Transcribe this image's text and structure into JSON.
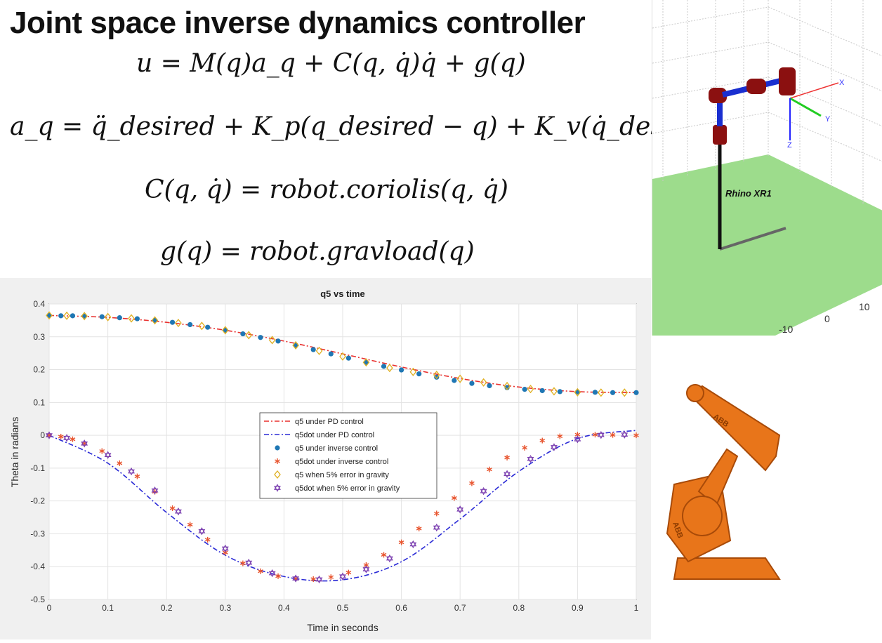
{
  "slide": {
    "title": "Joint space inverse dynamics controller",
    "equations": {
      "control_law": "u = M(q)a_q + C(q, q̇)q̇ + g(q)",
      "acceleration": "a_q = q̈_desired + K_p(q_desired − q) + K_v(q̇_desired − q̇)",
      "coriolis": "C(q, q̇) = robot.coriolis(q, q̇)",
      "gravity": "g(q) = robot.gravload(q)"
    }
  },
  "simulation": {
    "robot_label": "Rhino XR1",
    "axis_labels": {
      "x": "X",
      "y": "Y",
      "z": "Z"
    },
    "tick_labels": [
      "-10",
      "0",
      "10"
    ]
  },
  "photo": {
    "brand_text": "ABB",
    "description_name": "abb-industrial-robot"
  },
  "chart_data": {
    "type": "line",
    "title": "q5 vs time",
    "xlabel": "Time in seconds",
    "ylabel": "Theta in radians",
    "xlim": [
      0,
      1
    ],
    "ylim": [
      -0.5,
      0.4
    ],
    "xticks": [
      "0",
      "0.1",
      "0.2",
      "0.3",
      "0.4",
      "0.5",
      "0.6",
      "0.7",
      "0.8",
      "0.9",
      "1"
    ],
    "yticks": [
      "0.4",
      "0.3",
      "0.2",
      "0.1",
      "0",
      "-0.1",
      "-0.2",
      "-0.3",
      "-0.4",
      "-0.5"
    ],
    "grid": true,
    "legend_position": "center",
    "series": [
      {
        "name": "q5 under PD control",
        "style": "dashdot",
        "color": "#e8312f",
        "x": [
          0,
          0.1,
          0.2,
          0.3,
          0.4,
          0.5,
          0.6,
          0.7,
          0.8,
          0.9,
          1.0
        ],
        "values": [
          0.365,
          0.359,
          0.344,
          0.32,
          0.287,
          0.248,
          0.208,
          0.173,
          0.147,
          0.133,
          0.13
        ]
      },
      {
        "name": "q5dot under PD control",
        "style": "dashdot",
        "color": "#2b2bd6",
        "x": [
          0,
          0.1,
          0.2,
          0.3,
          0.4,
          0.5,
          0.6,
          0.7,
          0.8,
          0.9,
          1.0
        ],
        "values": [
          0.0,
          -0.085,
          -0.235,
          -0.365,
          -0.43,
          -0.44,
          -0.385,
          -0.255,
          -0.11,
          -0.01,
          0.015
        ]
      },
      {
        "name": "q5 under inverse control",
        "style": "dot",
        "color": "#1f77b4",
        "x": [
          0,
          0.02,
          0.04,
          0.06,
          0.09,
          0.12,
          0.15,
          0.18,
          0.21,
          0.24,
          0.27,
          0.3,
          0.33,
          0.36,
          0.39,
          0.42,
          0.45,
          0.48,
          0.51,
          0.54,
          0.57,
          0.6,
          0.63,
          0.66,
          0.69,
          0.72,
          0.75,
          0.78,
          0.81,
          0.84,
          0.87,
          0.9,
          0.93,
          0.96,
          1.0
        ],
        "values": [
          0.365,
          0.364,
          0.364,
          0.363,
          0.361,
          0.358,
          0.355,
          0.35,
          0.344,
          0.337,
          0.329,
          0.32,
          0.309,
          0.298,
          0.287,
          0.274,
          0.261,
          0.248,
          0.235,
          0.222,
          0.21,
          0.199,
          0.187,
          0.177,
          0.167,
          0.158,
          0.151,
          0.145,
          0.14,
          0.136,
          0.133,
          0.132,
          0.131,
          0.13,
          0.13
        ]
      },
      {
        "name": "q5dot under inverse control",
        "style": "asterisk",
        "color": "#e8552f",
        "x": [
          0,
          0.02,
          0.04,
          0.06,
          0.09,
          0.12,
          0.15,
          0.18,
          0.21,
          0.24,
          0.27,
          0.3,
          0.33,
          0.36,
          0.39,
          0.42,
          0.45,
          0.48,
          0.51,
          0.54,
          0.57,
          0.6,
          0.63,
          0.66,
          0.69,
          0.72,
          0.75,
          0.78,
          0.81,
          0.84,
          0.87,
          0.9,
          0.93,
          0.96,
          1.0
        ],
        "values": [
          0.0,
          -0.004,
          -0.012,
          -0.025,
          -0.048,
          -0.085,
          -0.125,
          -0.172,
          -0.222,
          -0.272,
          -0.318,
          -0.357,
          -0.39,
          -0.414,
          -0.429,
          -0.437,
          -0.438,
          -0.432,
          -0.418,
          -0.395,
          -0.364,
          -0.326,
          -0.284,
          -0.238,
          -0.191,
          -0.146,
          -0.104,
          -0.068,
          -0.038,
          -0.016,
          -0.003,
          0.002,
          0.002,
          0.001,
          0.0
        ]
      },
      {
        "name": "q5 when 5% error in gravity",
        "style": "diamond",
        "color": "#e0b020",
        "x": [
          0,
          0.03,
          0.06,
          0.1,
          0.14,
          0.18,
          0.22,
          0.26,
          0.3,
          0.34,
          0.38,
          0.42,
          0.46,
          0.5,
          0.54,
          0.58,
          0.62,
          0.66,
          0.7,
          0.74,
          0.78,
          0.82,
          0.86,
          0.9,
          0.94,
          0.98
        ],
        "values": [
          0.365,
          0.364,
          0.363,
          0.36,
          0.356,
          0.35,
          0.342,
          0.333,
          0.32,
          0.305,
          0.29,
          0.274,
          0.257,
          0.24,
          0.222,
          0.205,
          0.193,
          0.184,
          0.172,
          0.161,
          0.15,
          0.141,
          0.134,
          0.131,
          0.13,
          0.13
        ]
      },
      {
        "name": "q5dot when 5% error in gravity",
        "style": "hexagram",
        "color": "#7b3fb0",
        "x": [
          0,
          0.03,
          0.06,
          0.1,
          0.14,
          0.18,
          0.22,
          0.26,
          0.3,
          0.34,
          0.38,
          0.42,
          0.46,
          0.5,
          0.54,
          0.58,
          0.62,
          0.66,
          0.7,
          0.74,
          0.78,
          0.82,
          0.86,
          0.9,
          0.94,
          0.98
        ],
        "values": [
          0.0,
          -0.008,
          -0.025,
          -0.06,
          -0.11,
          -0.168,
          -0.232,
          -0.292,
          -0.345,
          -0.388,
          -0.42,
          -0.436,
          -0.439,
          -0.43,
          -0.408,
          -0.375,
          -0.332,
          -0.281,
          -0.226,
          -0.17,
          -0.118,
          -0.072,
          -0.036,
          -0.012,
          0.001,
          0.002
        ]
      }
    ]
  }
}
